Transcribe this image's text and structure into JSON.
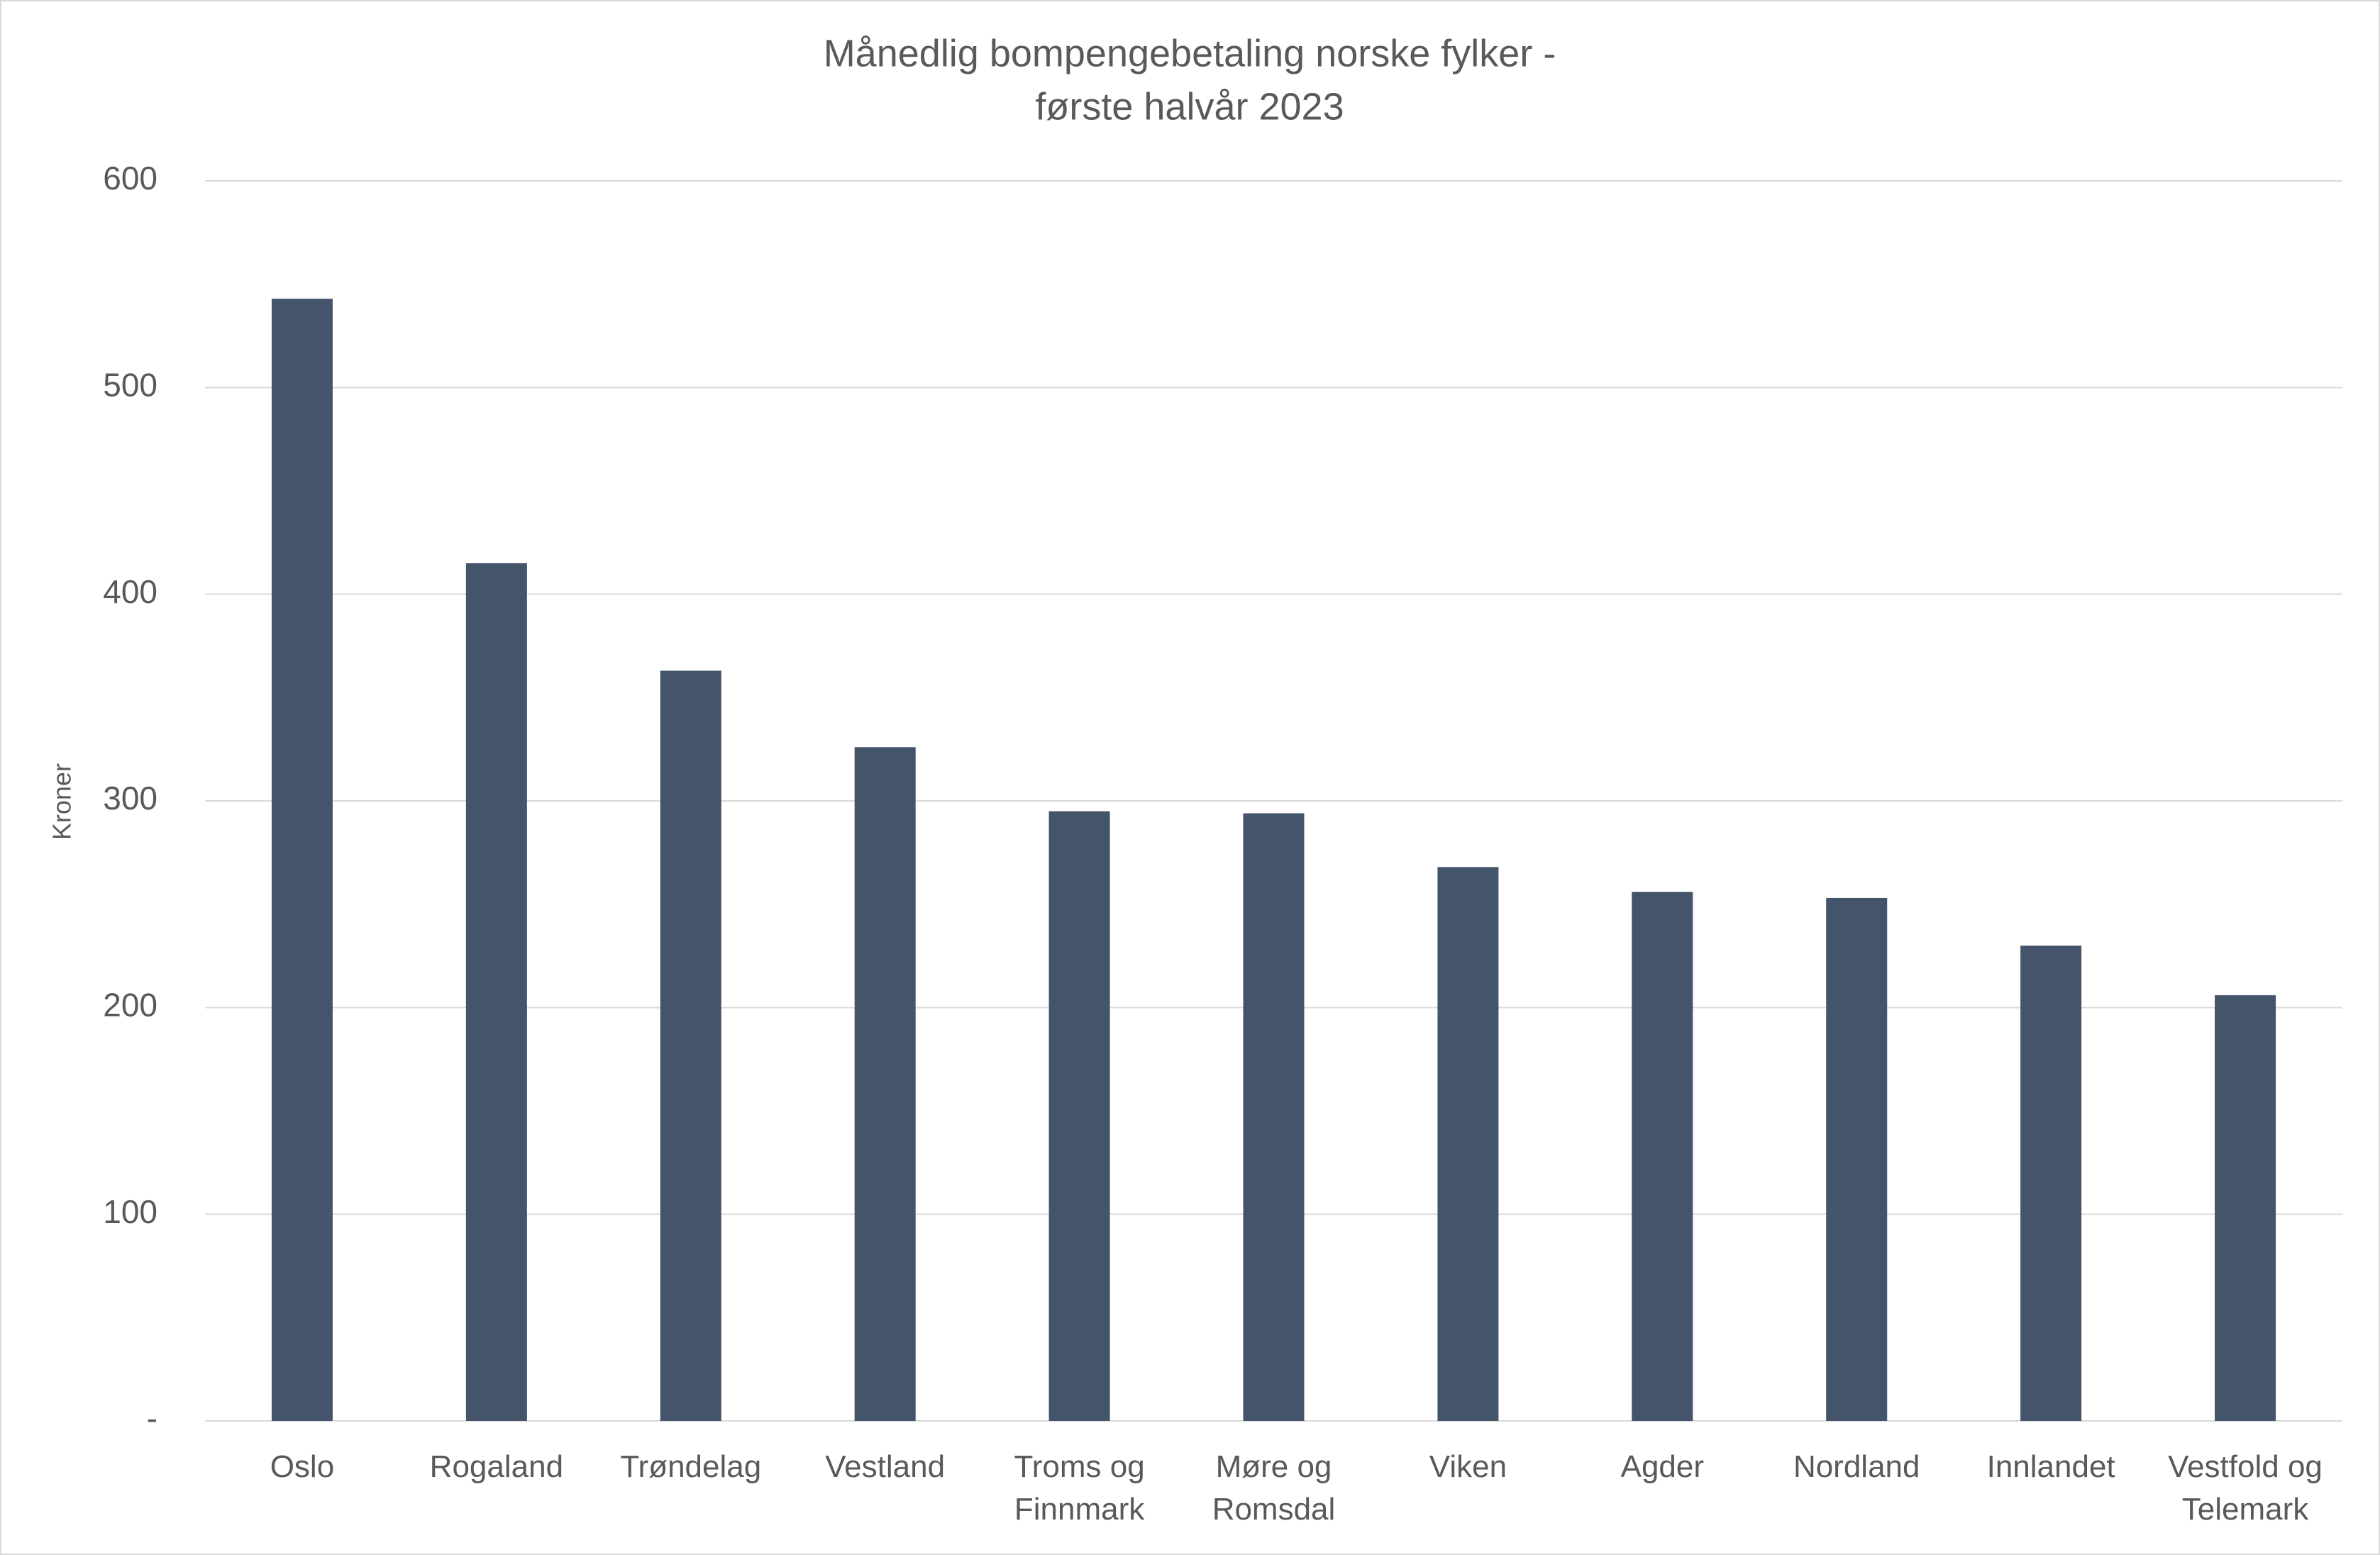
{
  "chart_data": {
    "type": "bar",
    "title": [
      "Månedlig bompengebetaling norske fylker -",
      "første halvår 2023"
    ],
    "y_label": "Kroner",
    "categories": [
      "Oslo",
      "Rogaland",
      "Trøndelag",
      "Vestland",
      "Troms og Finnmark",
      "Møre og Romsdal",
      "Viken",
      "Agder",
      "Nordland",
      "Innlandet",
      "Vestfold og Telemark"
    ],
    "values": [
      543,
      415,
      363,
      326,
      295,
      294,
      268,
      256,
      253,
      230,
      206
    ],
    "color": "#44546a",
    "ylim": [
      0,
      600
    ],
    "yticks": [
      {
        "value": 0,
        "label": "-"
      },
      100,
      200,
      300,
      400,
      500,
      600
    ],
    "grid": true
  }
}
